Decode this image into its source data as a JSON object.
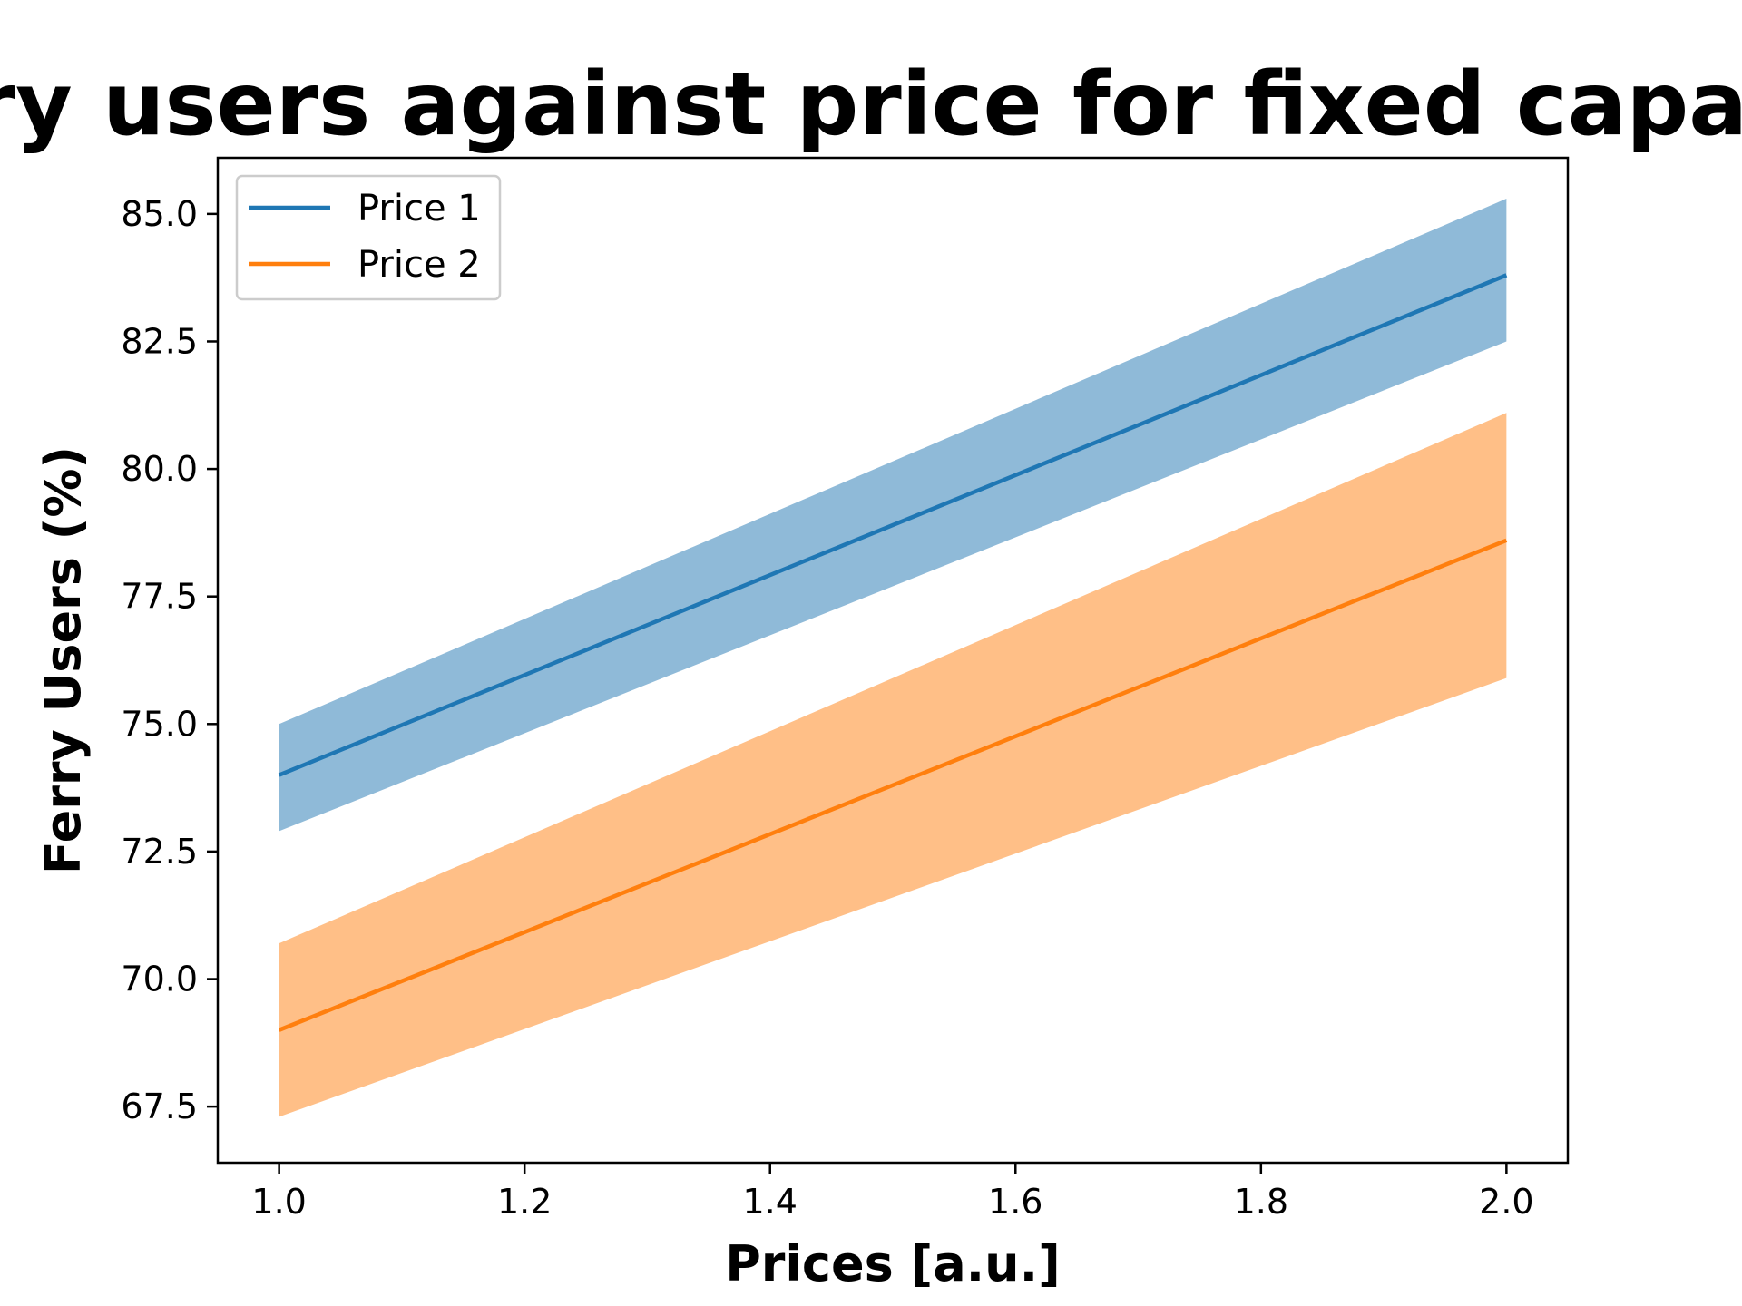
{
  "chart_data": {
    "type": "line",
    "title": "Ferry users against price for fixed capacity",
    "xlabel": "Prices [a.u.]",
    "ylabel": "Ferry Users (%)",
    "xlim": [
      0.95,
      2.05
    ],
    "ylim": [
      66.4,
      86.1
    ],
    "x_ticks": [
      1.0,
      1.2,
      1.4,
      1.6,
      1.8,
      2.0
    ],
    "x_tick_labels": [
      "1.0",
      "1.2",
      "1.4",
      "1.6",
      "1.8",
      "2.0"
    ],
    "y_ticks": [
      67.5,
      70.0,
      72.5,
      75.0,
      77.5,
      80.0,
      82.5,
      85.0
    ],
    "y_tick_labels": [
      "67.5",
      "70.0",
      "72.5",
      "75.0",
      "77.5",
      "80.0",
      "82.5",
      "85.0"
    ],
    "legend_position": "upper-left",
    "grid": false,
    "series": [
      {
        "name": "Price 1",
        "color": "#1f77b4",
        "band_color": "#8fbad8",
        "x": [
          1.0,
          2.0
        ],
        "y": [
          74.0,
          83.8
        ],
        "lower": [
          72.9,
          82.5
        ],
        "upper": [
          75.0,
          85.3
        ]
      },
      {
        "name": "Price 2",
        "color": "#ff7f0e",
        "band_color": "#ffbf87",
        "x": [
          1.0,
          2.0
        ],
        "y": [
          69.0,
          78.6
        ],
        "lower": [
          67.3,
          75.9
        ],
        "upper": [
          70.7,
          81.1
        ]
      }
    ]
  }
}
